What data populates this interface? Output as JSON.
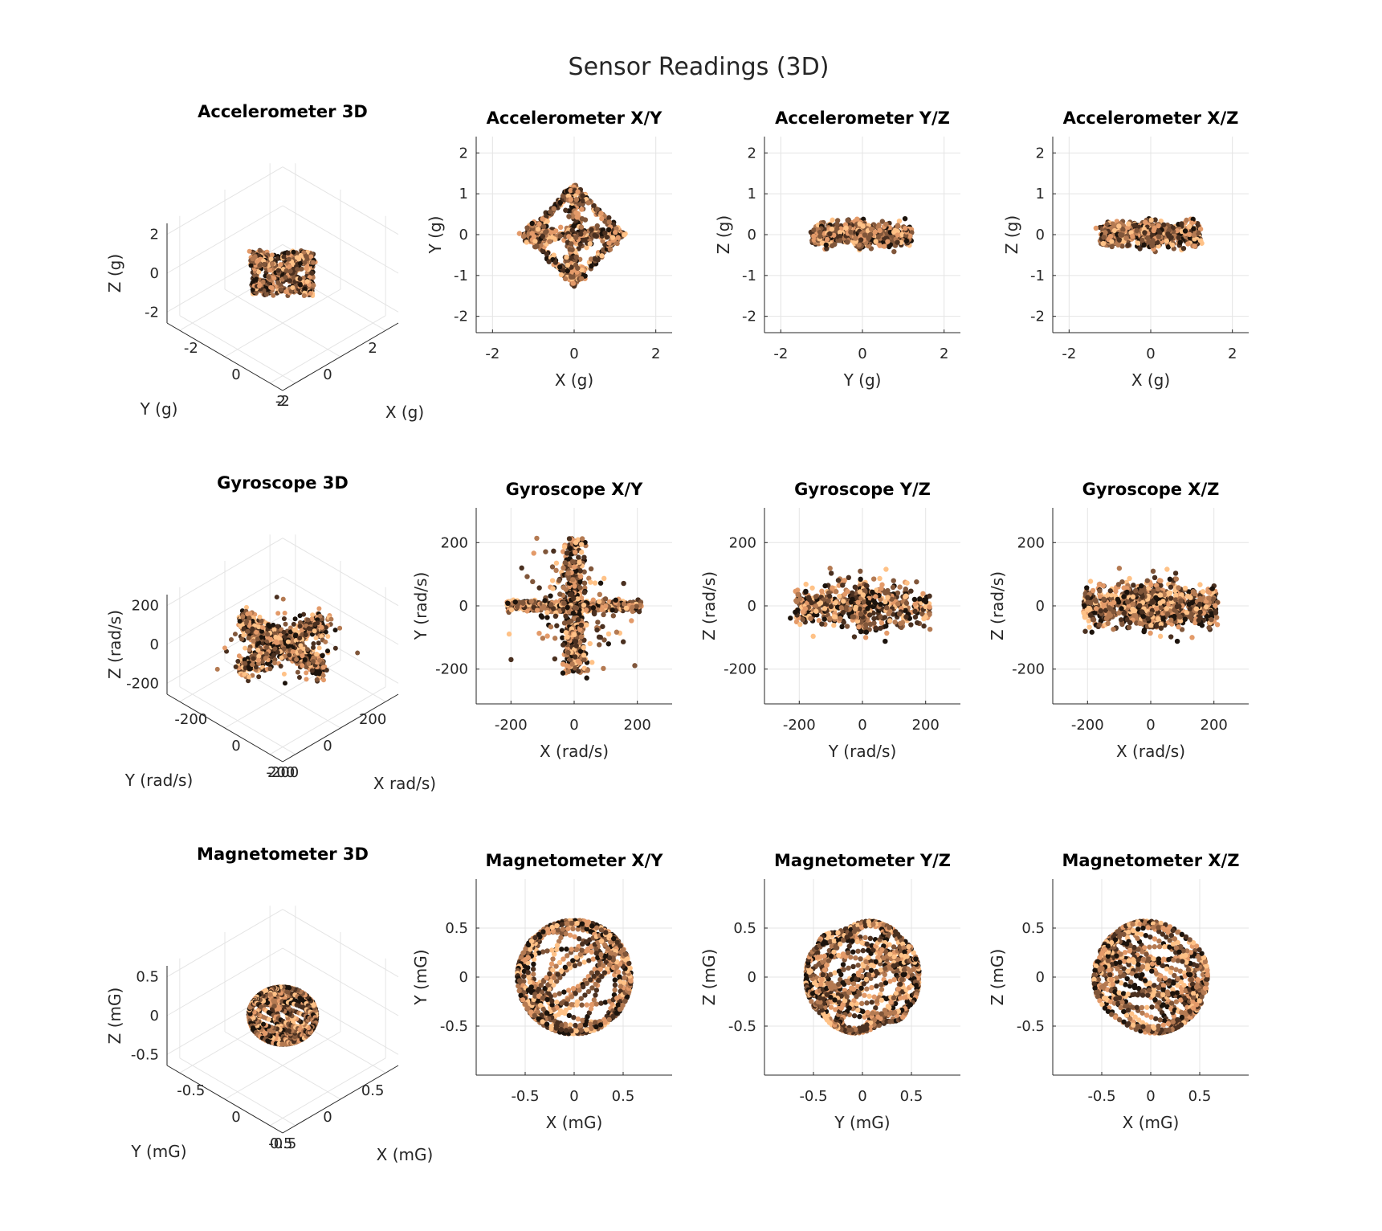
{
  "suptitle": "Sensor Readings (3D)",
  "colors": {
    "colormap": [
      "#1c130c",
      "#4a3020",
      "#80563a",
      "#b47a52",
      "#e39a69",
      "#ffc287"
    ],
    "grid": "#e4e4e4",
    "axis": "#262626"
  },
  "rows": [
    {
      "sensor": "Accelerometer",
      "kind": "accel",
      "panels": [
        {
          "title": "Accelerometer 3D",
          "xlabel": "X (g)",
          "ylabel": "Y (g)",
          "zlabel": "Z (g)",
          "xticks": [
            "-2",
            "0",
            "2"
          ],
          "yticks": [
            "-2",
            "0",
            "2"
          ],
          "zticks": [
            "-2",
            "0",
            "2"
          ]
        },
        {
          "title": "Accelerometer X/Y",
          "xlabel": "X (g)",
          "ylabel": "Y (g)",
          "xticks": [
            "-2",
            "0",
            "2"
          ],
          "yticks": [
            "-2",
            "-1",
            "0",
            "1",
            "2"
          ]
        },
        {
          "title": "Accelerometer Y/Z",
          "xlabel": "Y (g)",
          "ylabel": "Z (g)",
          "xticks": [
            "-2",
            "0",
            "2"
          ],
          "yticks": [
            "-2",
            "-1",
            "0",
            "1",
            "2"
          ]
        },
        {
          "title": "Accelerometer X/Z",
          "xlabel": "X (g)",
          "ylabel": "Z (g)",
          "xticks": [
            "-2",
            "0",
            "2"
          ],
          "yticks": [
            "-2",
            "-1",
            "0",
            "1",
            "2"
          ]
        }
      ]
    },
    {
      "sensor": "Gyroscope",
      "kind": "gyro",
      "panels": [
        {
          "title": "Gyroscope 3D",
          "xlabel": "X rad/s)",
          "ylabel": "Y (rad/s)",
          "zlabel": "Z (rad/s)",
          "xticks": [
            "-200",
            "0",
            "200"
          ],
          "yticks": [
            "-200",
            "0",
            "200"
          ],
          "zticks": [
            "-200",
            "0",
            "200"
          ]
        },
        {
          "title": "Gyroscope X/Y",
          "xlabel": "X (rad/s)",
          "ylabel": "Y (rad/s)",
          "xticks": [
            "-200",
            "0",
            "200"
          ],
          "yticks": [
            "-200",
            "0",
            "200"
          ]
        },
        {
          "title": "Gyroscope Y/Z",
          "xlabel": "Y (rad/s)",
          "ylabel": "Z (rad/s)",
          "xticks": [
            "-200",
            "0",
            "200"
          ],
          "yticks": [
            "-200",
            "0",
            "200"
          ]
        },
        {
          "title": "Gyroscope X/Z",
          "xlabel": "X (rad/s)",
          "ylabel": "Z (rad/s)",
          "xticks": [
            "-200",
            "0",
            "200"
          ],
          "yticks": [
            "-200",
            "0",
            "200"
          ]
        }
      ]
    },
    {
      "sensor": "Magnetometer",
      "kind": "mag",
      "panels": [
        {
          "title": "Magnetometer 3D",
          "xlabel": "X (mG)",
          "ylabel": "Y (mG)",
          "zlabel": "Z (mG)",
          "xticks": [
            "-0.5",
            "0",
            "0.5"
          ],
          "yticks": [
            "-0.5",
            "0",
            "0.5"
          ],
          "zticks": [
            "-0.5",
            "0",
            "0.5"
          ]
        },
        {
          "title": "Magnetometer X/Y",
          "xlabel": "X (mG)",
          "ylabel": "Y (mG)",
          "xticks": [
            "-0.5",
            "0",
            "0.5"
          ],
          "yticks": [
            "-0.5",
            "0",
            "0.5"
          ]
        },
        {
          "title": "Magnetometer Y/Z",
          "xlabel": "Y (mG)",
          "ylabel": "Z (mG)",
          "xticks": [
            "-0.5",
            "0",
            "0.5"
          ],
          "yticks": [
            "-0.5",
            "0",
            "0.5"
          ]
        },
        {
          "title": "Magnetometer X/Z",
          "xlabel": "X (mG)",
          "ylabel": "Z (mG)",
          "xticks": [
            "-0.5",
            "0",
            "0.5"
          ],
          "yticks": [
            "-0.5",
            "0",
            "0.5"
          ]
        }
      ]
    }
  ],
  "chart_data": [
    {
      "type": "scatter",
      "title": "Accelerometer 3D",
      "xlabel": "X (g)",
      "ylabel": "Y (g)",
      "zlabel": "Z (g)",
      "xlim": [
        -2.4,
        2.4
      ],
      "ylim": [
        -2.4,
        2.4
      ],
      "zlim": [
        -2.4,
        2.4
      ],
      "grid": true
    },
    {
      "type": "scatter",
      "title": "Accelerometer X/Y",
      "xlabel": "X (g)",
      "ylabel": "Y (g)",
      "xlim": [
        -2.4,
        2.4
      ],
      "ylim": [
        -2.4,
        2.4
      ],
      "grid": true
    },
    {
      "type": "scatter",
      "title": "Accelerometer Y/Z",
      "xlabel": "Y (g)",
      "ylabel": "Z (g)",
      "xlim": [
        -2.4,
        2.4
      ],
      "ylim": [
        -2.4,
        2.4
      ],
      "grid": true
    },
    {
      "type": "scatter",
      "title": "Accelerometer X/Z",
      "xlabel": "X (g)",
      "ylabel": "Z (g)",
      "xlim": [
        -2.4,
        2.4
      ],
      "ylim": [
        -2.4,
        2.4
      ],
      "grid": true
    },
    {
      "type": "scatter",
      "title": "Gyroscope 3D",
      "xlabel": "X rad/s)",
      "ylabel": "Y (rad/s)",
      "zlabel": "Z (rad/s)",
      "xlim": [
        -310,
        310
      ],
      "ylim": [
        -310,
        310
      ],
      "zlim": [
        -310,
        310
      ],
      "grid": true
    },
    {
      "type": "scatter",
      "title": "Gyroscope X/Y",
      "xlabel": "X (rad/s)",
      "ylabel": "Y (rad/s)",
      "xlim": [
        -310,
        310
      ],
      "ylim": [
        -310,
        310
      ],
      "grid": true
    },
    {
      "type": "scatter",
      "title": "Gyroscope Y/Z",
      "xlabel": "Y (rad/s)",
      "ylabel": "Z (rad/s)",
      "xlim": [
        -310,
        310
      ],
      "ylim": [
        -310,
        310
      ],
      "grid": true
    },
    {
      "type": "scatter",
      "title": "Gyroscope X/Z",
      "xlabel": "X (rad/s)",
      "ylabel": "Z (rad/s)",
      "xlim": [
        -310,
        310
      ],
      "ylim": [
        -310,
        310
      ],
      "grid": true
    },
    {
      "type": "scatter",
      "title": "Magnetometer 3D",
      "xlabel": "X (mG)",
      "ylabel": "Y (mG)",
      "zlabel": "Z (mG)",
      "xlim": [
        -1,
        1
      ],
      "ylim": [
        -1,
        1
      ],
      "zlim": [
        -1,
        1
      ],
      "grid": true
    },
    {
      "type": "scatter",
      "title": "Magnetometer X/Y",
      "xlabel": "X (mG)",
      "ylabel": "Y (mG)",
      "xlim": [
        -1,
        1
      ],
      "ylim": [
        -1,
        1
      ],
      "grid": true
    },
    {
      "type": "scatter",
      "title": "Magnetometer Y/Z",
      "xlabel": "Y (mG)",
      "ylabel": "Z (mG)",
      "xlim": [
        -1,
        1
      ],
      "ylim": [
        -1,
        1
      ],
      "grid": true
    },
    {
      "type": "scatter",
      "title": "Magnetometer X/Z",
      "xlabel": "X (mG)",
      "ylabel": "Z (mG)",
      "xlim": [
        -1,
        1
      ],
      "ylim": [
        -1,
        1
      ],
      "grid": true
    }
  ]
}
